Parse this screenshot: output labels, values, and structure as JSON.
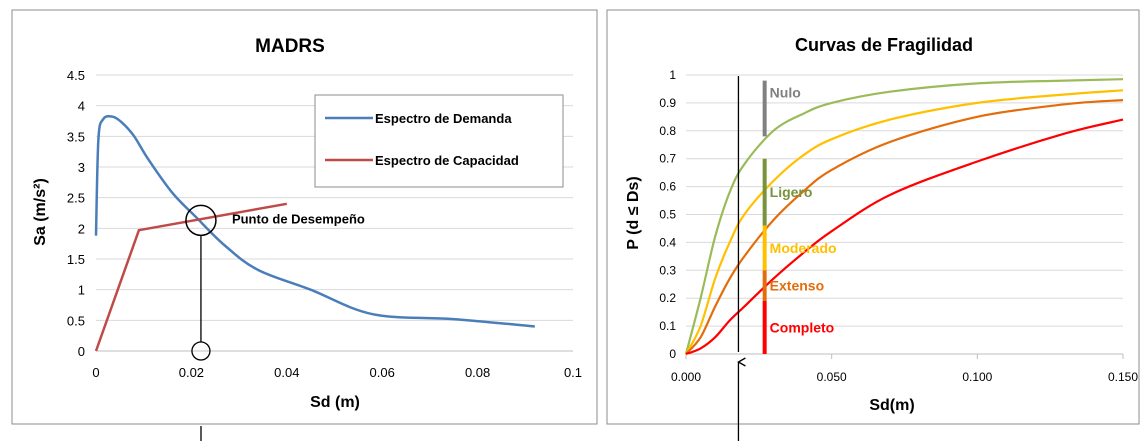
{
  "chart_data": [
    {
      "type": "line",
      "title": "MADRS",
      "xlabel": "Sd (m)",
      "ylabel": "Sa (m/s²)",
      "xlim": [
        0,
        0.1
      ],
      "ylim": [
        0,
        4.5
      ],
      "x_ticks": [
        "0",
        "0.02",
        "0.04",
        "0.06",
        "0.08",
        "0.1"
      ],
      "y_ticks": [
        "0",
        "0.5",
        "1",
        "1.5",
        "2",
        "2.5",
        "3",
        "3.5",
        "4",
        "4.5"
      ],
      "grid": "horizontal",
      "legend_position": "top-right",
      "series": [
        {
          "name": "Espectro de Demanda",
          "color": "#4a7ebb",
          "x": [
            0,
            0.0005,
            0.0015,
            0.0035,
            0.0055,
            0.008,
            0.011,
            0.016,
            0.021,
            0.027,
            0.034,
            0.045,
            0.058,
            0.075,
            0.092
          ],
          "y": [
            1.88,
            3.45,
            3.78,
            3.82,
            3.72,
            3.5,
            3.12,
            2.58,
            2.18,
            1.72,
            1.32,
            1.0,
            0.6,
            0.52,
            0.4
          ]
        },
        {
          "name": "Espectro de Capacidad",
          "color": "#be4b48",
          "x": [
            0,
            0.009,
            0.04
          ],
          "y": [
            0,
            1.97,
            2.4
          ]
        }
      ],
      "annotations": [
        {
          "text": "Punto de Desempeño",
          "x": 0.022,
          "y": 2.13
        }
      ]
    },
    {
      "type": "line",
      "title": "Curvas de Fragilidad",
      "xlabel": "Sd(m)",
      "ylabel": "P (d ≤ Ds)",
      "xlim": [
        0,
        0.15
      ],
      "ylim": [
        0,
        1
      ],
      "x_ticks": [
        "0.000",
        "0.050",
        "0.100",
        "0.150"
      ],
      "y_ticks": [
        "0",
        "0.1",
        "0.2",
        "0.3",
        "0.4",
        "0.5",
        "0.6",
        "0.7",
        "0.8",
        "0.9",
        "1"
      ],
      "grid": "horizontal",
      "series": [
        {
          "color": "#9bbb59",
          "x": [
            0,
            0.005,
            0.01,
            0.015,
            0.02,
            0.03,
            0.04,
            0.05,
            0.07,
            0.1,
            0.13,
            0.15
          ],
          "y": [
            0,
            0.2,
            0.42,
            0.58,
            0.68,
            0.8,
            0.86,
            0.9,
            0.94,
            0.97,
            0.98,
            0.985
          ]
        },
        {
          "color": "#ffc000",
          "x": [
            0,
            0.005,
            0.01,
            0.015,
            0.02,
            0.03,
            0.04,
            0.05,
            0.07,
            0.1,
            0.13,
            0.15
          ],
          "y": [
            0,
            0.1,
            0.27,
            0.4,
            0.5,
            0.62,
            0.71,
            0.77,
            0.84,
            0.9,
            0.93,
            0.945
          ]
        },
        {
          "color": "#e46c0a",
          "x": [
            0,
            0.005,
            0.01,
            0.015,
            0.02,
            0.03,
            0.04,
            0.05,
            0.07,
            0.1,
            0.13,
            0.15
          ],
          "y": [
            0,
            0.06,
            0.17,
            0.27,
            0.35,
            0.48,
            0.58,
            0.66,
            0.76,
            0.85,
            0.895,
            0.91
          ]
        },
        {
          "color": "#ff0000",
          "x": [
            0,
            0.005,
            0.01,
            0.015,
            0.02,
            0.03,
            0.04,
            0.05,
            0.07,
            0.1,
            0.13,
            0.15
          ],
          "y": [
            0,
            0.02,
            0.06,
            0.12,
            0.17,
            0.27,
            0.36,
            0.44,
            0.57,
            0.69,
            0.79,
            0.84
          ]
        }
      ],
      "damage_states": [
        {
          "label": "Nulo",
          "color": "#808080",
          "y_from": 0.78,
          "y_to": 0.98
        },
        {
          "label": "Ligero",
          "color": "#77933c",
          "y_from": 0.46,
          "y_to": 0.7
        },
        {
          "label": "Moderado",
          "color": "#ffc000",
          "y_from": 0.3,
          "y_to": 0.46
        },
        {
          "label": "Extenso",
          "color": "#e46c0a",
          "y_from": 0.19,
          "y_to": 0.3
        },
        {
          "label": "Completo",
          "color": "#ff0000",
          "y_from": 0,
          "y_to": 0.19
        }
      ],
      "reference_line_x": 0.018,
      "damage_bar_x": 0.027
    }
  ]
}
